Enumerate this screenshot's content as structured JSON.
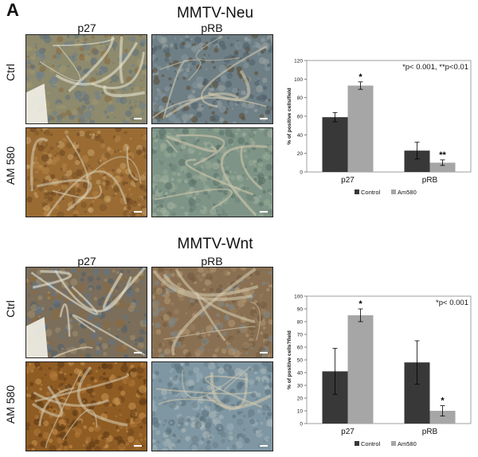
{
  "panel_label": "A",
  "sections": [
    {
      "title": "MMTV-Neu",
      "columns": [
        "p27",
        "pRB"
      ],
      "rows": [
        "Ctrl",
        "AM 580"
      ]
    },
    {
      "title": "MMTV-Wnt",
      "columns": [
        "p27",
        "pRB"
      ],
      "rows": [
        "Ctrl",
        "AM 580"
      ]
    }
  ],
  "colors": {
    "control": "#383838",
    "am580": "#a6a6a6",
    "stain_brown": "#8a5a24",
    "stain_blue": "#7f9cb0"
  },
  "chart_data": [
    {
      "type": "bar",
      "categories": [
        "p27",
        "pRB"
      ],
      "series": [
        {
          "name": "Control",
          "values": [
            59,
            23
          ],
          "errors": [
            5,
            9
          ]
        },
        {
          "name": "Am580",
          "values": [
            93,
            10
          ],
          "errors": [
            4,
            3
          ]
        }
      ],
      "significance": [
        [
          "",
          "*"
        ],
        [
          "",
          "**"
        ]
      ],
      "annotation": "*p< 0.001, **p<0.01",
      "ylabel": "% of positive cells/field",
      "ylim": [
        0,
        120
      ],
      "yticks": [
        0,
        20,
        40,
        60,
        80,
        100,
        120
      ],
      "legend_position": "bottom"
    },
    {
      "type": "bar",
      "categories": [
        "p27",
        "pRB"
      ],
      "series": [
        {
          "name": "Control",
          "values": [
            41,
            48
          ],
          "errors": [
            18,
            17
          ]
        },
        {
          "name": "Am580",
          "values": [
            85,
            10
          ],
          "errors": [
            5,
            4
          ]
        }
      ],
      "significance": [
        [
          "",
          "*"
        ],
        [
          "",
          "*"
        ]
      ],
      "annotation": "*p< 0.001",
      "ylabel": "% of positive cells?field",
      "ylim": [
        0,
        100
      ],
      "yticks": [
        0,
        10,
        20,
        30,
        40,
        50,
        60,
        70,
        80,
        90,
        100
      ],
      "legend_position": "bottom"
    }
  ]
}
